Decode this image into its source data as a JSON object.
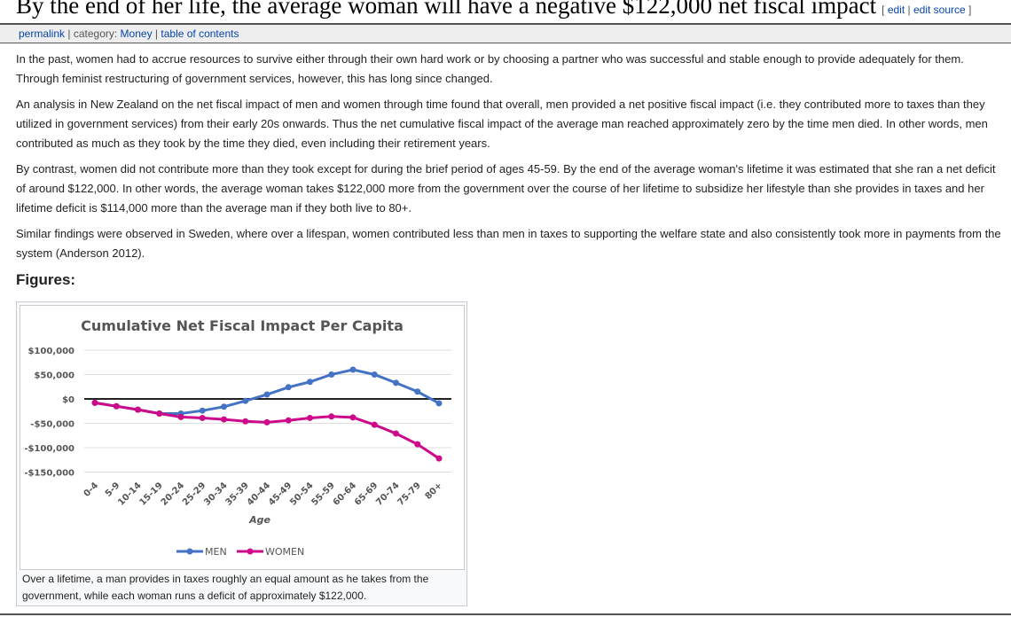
{
  "header": {
    "title": "By the end of her life, the average woman will have a negative $122,000 net fiscal impact",
    "edit": "edit",
    "edit_source": "edit source"
  },
  "catbar": {
    "permalink": "permalink",
    "category_prefix": "category:",
    "category": "Money",
    "toc": "table of contents"
  },
  "paragraphs": [
    "In the past, women had to accrue resources to survive either through their own hard work or by choosing a partner who was successful and stable enough to provide adequately for them. Through feminist restructuring of government services, however, this has long since changed.",
    "An analysis in New Zealand on the net fiscal impact of men and women through time found that overall, men provided a net positive fiscal impact (i.e. they contributed more to taxes than they utilized in government services) from their early 20s onwards. Thus the net cumulative fiscal impact of the average man reached approximately zero by the time men died. In other words, men contributed as much as they took by the time they died, even including their retirement years.",
    "By contrast, women did not contribute more than they took except for during the brief period of ages 45-59. By the end of the average woman's lifetime it was estimated that she ran a net deficit of around $122,000. In other words, the average woman takes $122,000 more from the government over the course of her lifetime to subsidize her lifestyle than she provides in taxes and her lifetime deficit is $114,000 more than the average man if they both live to 80+.",
    "Similar findings were observed in Sweden, where over a lifespan, women contributed less than men in taxes to supporting the welfare state and also consistently took more in payments from the system (Anderson 2012)."
  ],
  "figures_heading": "Figures:",
  "caption": "Over a lifetime, a man provides in taxes roughly an equal amount as he takes from the government, while each woman runs a deficit of approximately $122,000.",
  "chart_data": {
    "type": "line",
    "title": "Cumulative Net Fiscal Impact Per Capita",
    "xlabel": "Age",
    "ylabel": "",
    "categories": [
      "0-4",
      "5-9",
      "10-14",
      "15-19",
      "20-24",
      "25-29",
      "30-34",
      "35-39",
      "40-44",
      "45-49",
      "50-54",
      "55-59",
      "60-64",
      "65-69",
      "70-74",
      "75-79",
      "80+"
    ],
    "ylim": [
      -150000,
      100000
    ],
    "yticks": [
      100000,
      50000,
      0,
      -50000,
      -100000,
      -150000
    ],
    "ytick_labels": [
      "$100,000",
      "$50,000",
      "$0",
      "-$50,000",
      "-$100,000",
      "-$150,000"
    ],
    "grid": true,
    "legend": "bottom",
    "series": [
      {
        "name": "MEN",
        "color": "#4472c4",
        "values": [
          -8000,
          -15000,
          -22000,
          -30000,
          -30000,
          -24000,
          -16000,
          -4000,
          9000,
          24000,
          35000,
          50000,
          60000,
          50000,
          33000,
          15000,
          -9000
        ]
      },
      {
        "name": "WOMEN",
        "color": "#cc0a8a",
        "values": [
          -8000,
          -15000,
          -22000,
          -30000,
          -37000,
          -39000,
          -42000,
          -46000,
          -48000,
          -44000,
          -39000,
          -36000,
          -38000,
          -53000,
          -71000,
          -93000,
          -122000
        ]
      }
    ]
  }
}
